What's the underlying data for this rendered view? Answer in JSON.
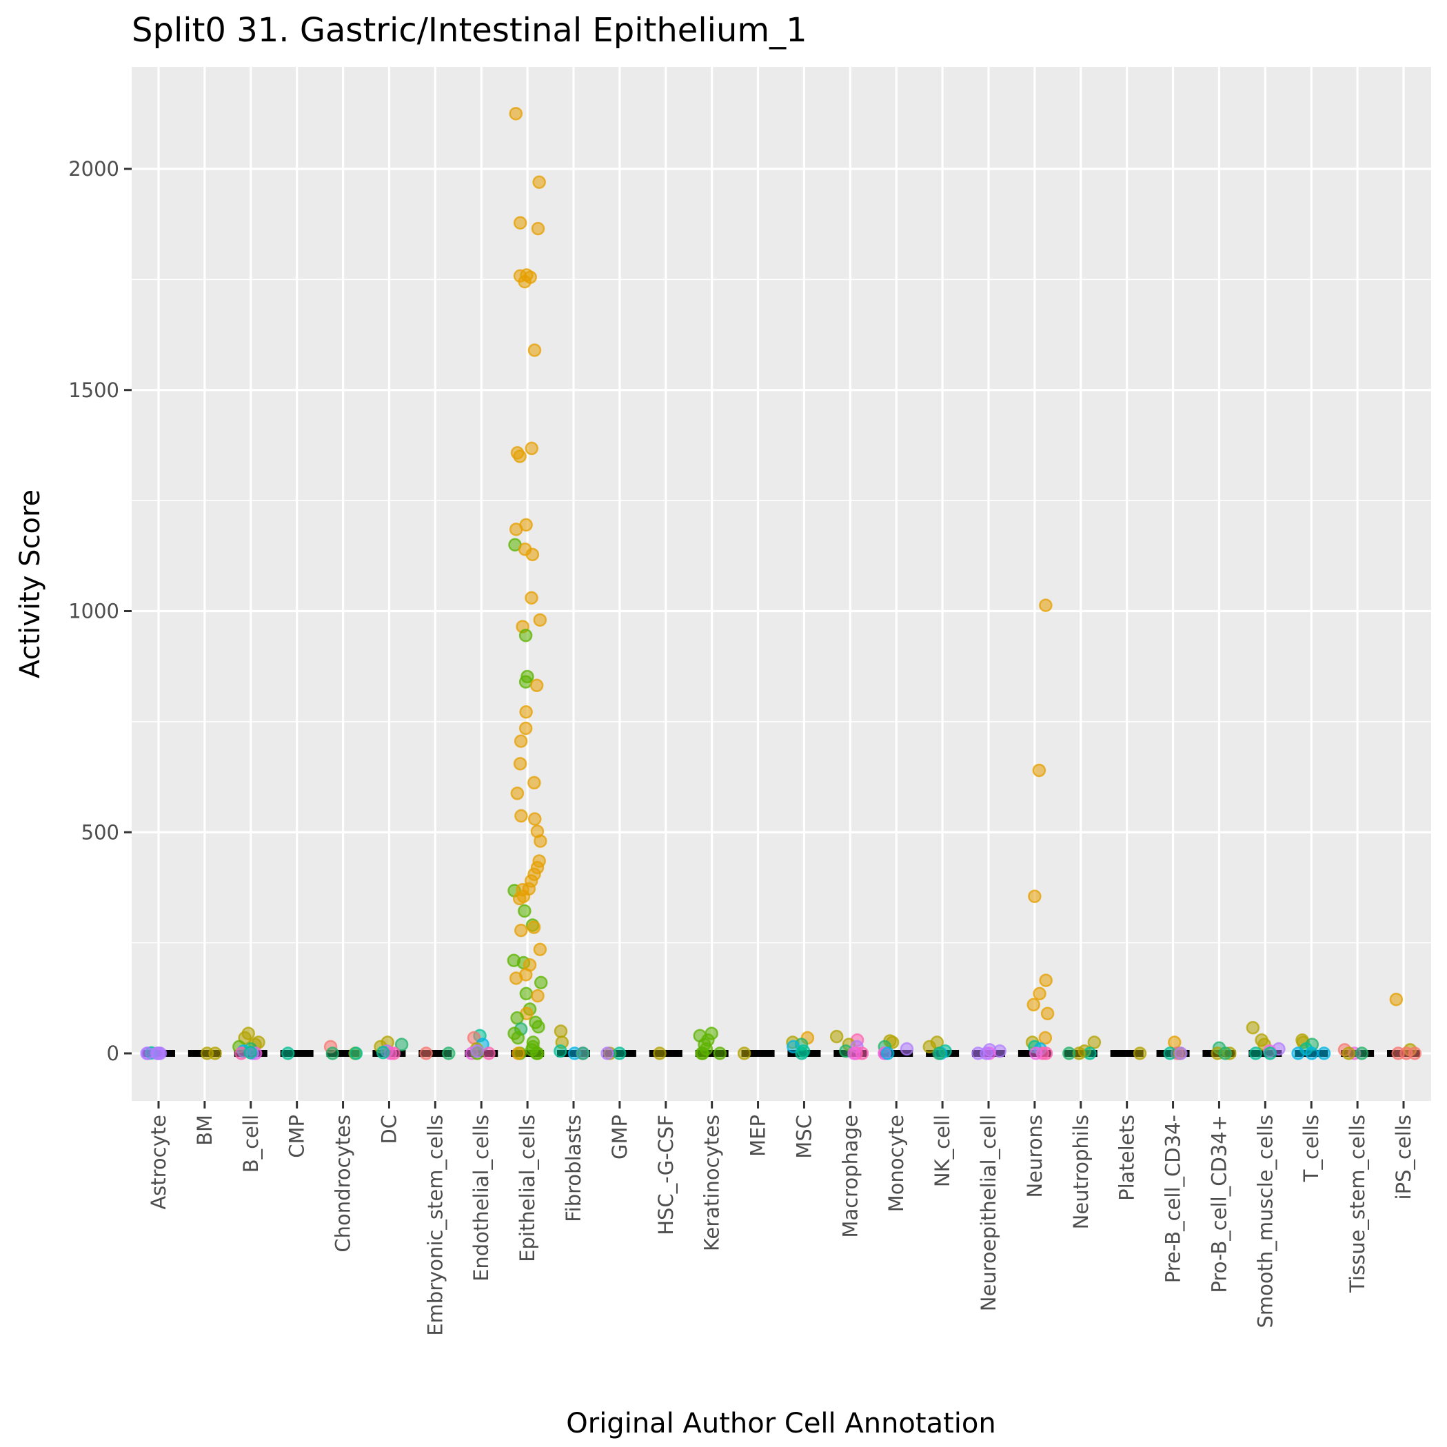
{
  "chart_data": {
    "type": "scatter",
    "subtype": "jitter-strip",
    "title": "Split0 31. Gastric/Intestinal Epithelium_1",
    "xlabel": "Original Author Cell Annotation",
    "ylabel": "Activity Score",
    "ylim": [
      -110,
      2130
    ],
    "yticks": [
      0,
      500,
      1000,
      1500,
      2000
    ],
    "ytick_labels": [
      "0",
      "500",
      "1000",
      "1500",
      "2000"
    ],
    "grid": true,
    "legend": "none",
    "categories": [
      "Astrocyte",
      "BM",
      "B_cell",
      "CMP",
      "Chondrocytes",
      "DC",
      "Embryonic_stem_cells",
      "Endothelial_cells",
      "Epithelial_cells",
      "Fibroblasts",
      "GMP",
      "HSC_-G-CSF",
      "Keratinocytes",
      "MEP",
      "MSC",
      "Macrophage",
      "Monocyte",
      "NK_cell",
      "Neuroepithelial_cell",
      "Neurons",
      "Neutrophils",
      "Platelets",
      "Pre-B_cell_CD34-",
      "Pro-B_cell_CD34+",
      "Smooth_muscle_cells",
      "T_cells",
      "Tissue_stem_cells",
      "iPS_cells"
    ],
    "palette": {
      "orange": "#e69f00",
      "green": "#5cb300",
      "olive": "#b3a300",
      "teal": "#00bf96",
      "cyan": "#00b4e6",
      "purple": "#b07cff",
      "magenta": "#f067e6",
      "pink": "#ff61b0",
      "salmon": "#f8766d",
      "seagreen": "#22b36b",
      "blue": "#33a3ff"
    },
    "series": [
      {
        "category": "Astrocyte",
        "points": [
          [
            0,
            "purple"
          ],
          [
            0,
            "purple"
          ],
          [
            0,
            "purple"
          ],
          [
            1,
            "teal"
          ],
          [
            0,
            "purple"
          ],
          [
            0,
            "purple"
          ],
          [
            0,
            "purple"
          ]
        ]
      },
      {
        "category": "BM",
        "points": [
          [
            0,
            "olive"
          ],
          [
            0,
            "olive"
          ]
        ]
      },
      {
        "category": "B_cell",
        "points": [
          [
            45,
            "olive"
          ],
          [
            35,
            "olive"
          ],
          [
            25,
            "olive"
          ],
          [
            20,
            "olive"
          ],
          [
            15,
            "green"
          ],
          [
            10,
            "seagreen"
          ],
          [
            5,
            "cyan"
          ],
          [
            0,
            "magenta"
          ],
          [
            0,
            "pink"
          ],
          [
            0,
            "purple"
          ],
          [
            2,
            "teal"
          ]
        ]
      },
      {
        "category": "CMP",
        "points": [
          [
            0,
            "teal"
          ]
        ]
      },
      {
        "category": "Chondrocytes",
        "points": [
          [
            15,
            "salmon"
          ],
          [
            0,
            "olive"
          ],
          [
            0,
            "teal"
          ],
          [
            0,
            "seagreen"
          ]
        ]
      },
      {
        "category": "DC",
        "points": [
          [
            25,
            "olive"
          ],
          [
            20,
            "seagreen"
          ],
          [
            15,
            "olive"
          ],
          [
            5,
            "purple"
          ],
          [
            0,
            "magenta"
          ],
          [
            0,
            "pink"
          ],
          [
            2,
            "teal"
          ]
        ]
      },
      {
        "category": "Embryonic_stem_cells",
        "points": [
          [
            0,
            "salmon"
          ],
          [
            0,
            "seagreen"
          ]
        ]
      },
      {
        "category": "Endothelial_cells",
        "points": [
          [
            40,
            "teal"
          ],
          [
            35,
            "salmon"
          ],
          [
            20,
            "cyan"
          ],
          [
            10,
            "olive"
          ],
          [
            0,
            "magenta"
          ],
          [
            0,
            "pink"
          ],
          [
            0,
            "green"
          ],
          [
            5,
            "purple"
          ]
        ]
      },
      {
        "category": "Epithelial_cells",
        "points": [
          [
            2125,
            "orange"
          ],
          [
            1970,
            "orange"
          ],
          [
            1878,
            "orange"
          ],
          [
            1865,
            "orange"
          ],
          [
            1760,
            "orange"
          ],
          [
            1758,
            "orange"
          ],
          [
            1755,
            "orange"
          ],
          [
            1745,
            "orange"
          ],
          [
            1590,
            "orange"
          ],
          [
            1368,
            "orange"
          ],
          [
            1358,
            "orange"
          ],
          [
            1350,
            "orange"
          ],
          [
            1195,
            "orange"
          ],
          [
            1185,
            "orange"
          ],
          [
            1150,
            "green"
          ],
          [
            1140,
            "orange"
          ],
          [
            1128,
            "orange"
          ],
          [
            1030,
            "orange"
          ],
          [
            980,
            "orange"
          ],
          [
            965,
            "orange"
          ],
          [
            945,
            "green"
          ],
          [
            852,
            "green"
          ],
          [
            840,
            "green"
          ],
          [
            832,
            "orange"
          ],
          [
            772,
            "orange"
          ],
          [
            735,
            "orange"
          ],
          [
            706,
            "orange"
          ],
          [
            655,
            "orange"
          ],
          [
            612,
            "orange"
          ],
          [
            588,
            "orange"
          ],
          [
            537,
            "orange"
          ],
          [
            530,
            "orange"
          ],
          [
            502,
            "orange"
          ],
          [
            480,
            "orange"
          ],
          [
            435,
            "orange"
          ],
          [
            420,
            "orange"
          ],
          [
            405,
            "orange"
          ],
          [
            390,
            "orange"
          ],
          [
            372,
            "orange"
          ],
          [
            368,
            "green"
          ],
          [
            370,
            "orange"
          ],
          [
            355,
            "orange"
          ],
          [
            350,
            "orange"
          ],
          [
            322,
            "green"
          ],
          [
            290,
            "green"
          ],
          [
            285,
            "orange"
          ],
          [
            278,
            "orange"
          ],
          [
            235,
            "orange"
          ],
          [
            210,
            "green"
          ],
          [
            205,
            "green"
          ],
          [
            200,
            "orange"
          ],
          [
            178,
            "orange"
          ],
          [
            170,
            "orange"
          ],
          [
            160,
            "green"
          ],
          [
            135,
            "green"
          ],
          [
            130,
            "orange"
          ],
          [
            100,
            "green"
          ],
          [
            90,
            "orange"
          ],
          [
            80,
            "green"
          ],
          [
            70,
            "green"
          ],
          [
            60,
            "green"
          ],
          [
            55,
            "seagreen"
          ],
          [
            45,
            "green"
          ],
          [
            35,
            "green"
          ],
          [
            25,
            "green"
          ],
          [
            15,
            "green"
          ],
          [
            8,
            "green"
          ],
          [
            0,
            "green"
          ],
          [
            0,
            "green"
          ],
          [
            0,
            "green"
          ],
          [
            0,
            "orange"
          ]
        ]
      },
      {
        "category": "Fibroblasts",
        "points": [
          [
            50,
            "olive"
          ],
          [
            25,
            "olive"
          ],
          [
            5,
            "teal"
          ],
          [
            0,
            "cyan"
          ],
          [
            0,
            "purple"
          ],
          [
            0,
            "seagreen"
          ]
        ]
      },
      {
        "category": "GMP",
        "points": [
          [
            0,
            "olive"
          ],
          [
            0,
            "teal"
          ],
          [
            0,
            "purple"
          ]
        ]
      },
      {
        "category": "HSC_-G-CSF",
        "points": [
          [
            0,
            "olive"
          ]
        ]
      },
      {
        "category": "Keratinocytes",
        "points": [
          [
            45,
            "green"
          ],
          [
            40,
            "green"
          ],
          [
            30,
            "green"
          ],
          [
            20,
            "green"
          ],
          [
            10,
            "green"
          ],
          [
            0,
            "green"
          ],
          [
            0,
            "green"
          ],
          [
            0,
            "green"
          ]
        ]
      },
      {
        "category": "MEP",
        "points": [
          [
            0,
            "olive"
          ]
        ]
      },
      {
        "category": "MSC",
        "points": [
          [
            35,
            "orange"
          ],
          [
            25,
            "olive"
          ],
          [
            20,
            "seagreen"
          ],
          [
            15,
            "cyan"
          ],
          [
            5,
            "teal"
          ],
          [
            0,
            "teal"
          ]
        ]
      },
      {
        "category": "Macrophage",
        "points": [
          [
            38,
            "olive"
          ],
          [
            30,
            "pink"
          ],
          [
            20,
            "olive"
          ],
          [
            15,
            "purple"
          ],
          [
            5,
            "seagreen"
          ],
          [
            0,
            "pink"
          ],
          [
            0,
            "pink"
          ],
          [
            0,
            "magenta"
          ]
        ]
      },
      {
        "category": "Monocyte",
        "points": [
          [
            28,
            "olive"
          ],
          [
            25,
            "olive"
          ],
          [
            15,
            "seagreen"
          ],
          [
            10,
            "purple"
          ],
          [
            0,
            "pink"
          ],
          [
            0,
            "magenta"
          ],
          [
            0,
            "cyan"
          ]
        ]
      },
      {
        "category": "NK_cell",
        "points": [
          [
            25,
            "olive"
          ],
          [
            15,
            "olive"
          ],
          [
            5,
            "teal"
          ],
          [
            0,
            "cyan"
          ],
          [
            0,
            "seagreen"
          ]
        ]
      },
      {
        "category": "Neuroepithelial_cell",
        "points": [
          [
            8,
            "purple"
          ],
          [
            5,
            "purple"
          ],
          [
            0,
            "magenta"
          ],
          [
            0,
            "purple"
          ],
          [
            0,
            "purple"
          ]
        ]
      },
      {
        "category": "Neurons",
        "points": [
          [
            1013,
            "orange"
          ],
          [
            640,
            "orange"
          ],
          [
            355,
            "orange"
          ],
          [
            165,
            "orange"
          ],
          [
            135,
            "orange"
          ],
          [
            110,
            "orange"
          ],
          [
            90,
            "orange"
          ],
          [
            35,
            "orange"
          ],
          [
            25,
            "olive"
          ],
          [
            15,
            "teal"
          ],
          [
            10,
            "cyan"
          ],
          [
            0,
            "pink"
          ],
          [
            0,
            "pink"
          ],
          [
            0,
            "magenta"
          ]
        ]
      },
      {
        "category": "Neutrophils",
        "points": [
          [
            25,
            "olive"
          ],
          [
            5,
            "olive"
          ],
          [
            0,
            "teal"
          ],
          [
            0,
            "olive"
          ],
          [
            0,
            "seagreen"
          ]
        ]
      },
      {
        "category": "Platelets",
        "points": [
          [
            0,
            "olive"
          ]
        ]
      },
      {
        "category": "Pre-B_cell_CD34-",
        "points": [
          [
            25,
            "orange"
          ],
          [
            0,
            "pink"
          ],
          [
            0,
            "teal"
          ],
          [
            0,
            "olive"
          ],
          [
            0,
            "purple"
          ]
        ]
      },
      {
        "category": "Pro-B_cell_CD34+",
        "points": [
          [
            12,
            "seagreen"
          ],
          [
            0,
            "olive"
          ],
          [
            0,
            "olive"
          ],
          [
            0,
            "seagreen"
          ]
        ]
      },
      {
        "category": "Smooth_muscle_cells",
        "points": [
          [
            58,
            "olive"
          ],
          [
            30,
            "olive"
          ],
          [
            20,
            "olive"
          ],
          [
            10,
            "purple"
          ],
          [
            5,
            "magenta"
          ],
          [
            0,
            "teal"
          ],
          [
            0,
            "teal"
          ]
        ]
      },
      {
        "category": "T_cells",
        "points": [
          [
            30,
            "olive"
          ],
          [
            25,
            "olive"
          ],
          [
            20,
            "seagreen"
          ],
          [
            10,
            "teal"
          ],
          [
            0,
            "cyan"
          ],
          [
            0,
            "cyan"
          ],
          [
            0,
            "cyan"
          ]
        ]
      },
      {
        "category": "Tissue_stem_cells",
        "points": [
          [
            8,
            "salmon"
          ],
          [
            0,
            "magenta"
          ],
          [
            0,
            "olive"
          ],
          [
            0,
            "seagreen"
          ]
        ]
      },
      {
        "category": "iPS_cells",
        "points": [
          [
            122,
            "orange"
          ],
          [
            8,
            "olive"
          ],
          [
            0,
            "salmon"
          ],
          [
            0,
            "salmon"
          ],
          [
            0,
            "salmon"
          ]
        ]
      }
    ]
  }
}
